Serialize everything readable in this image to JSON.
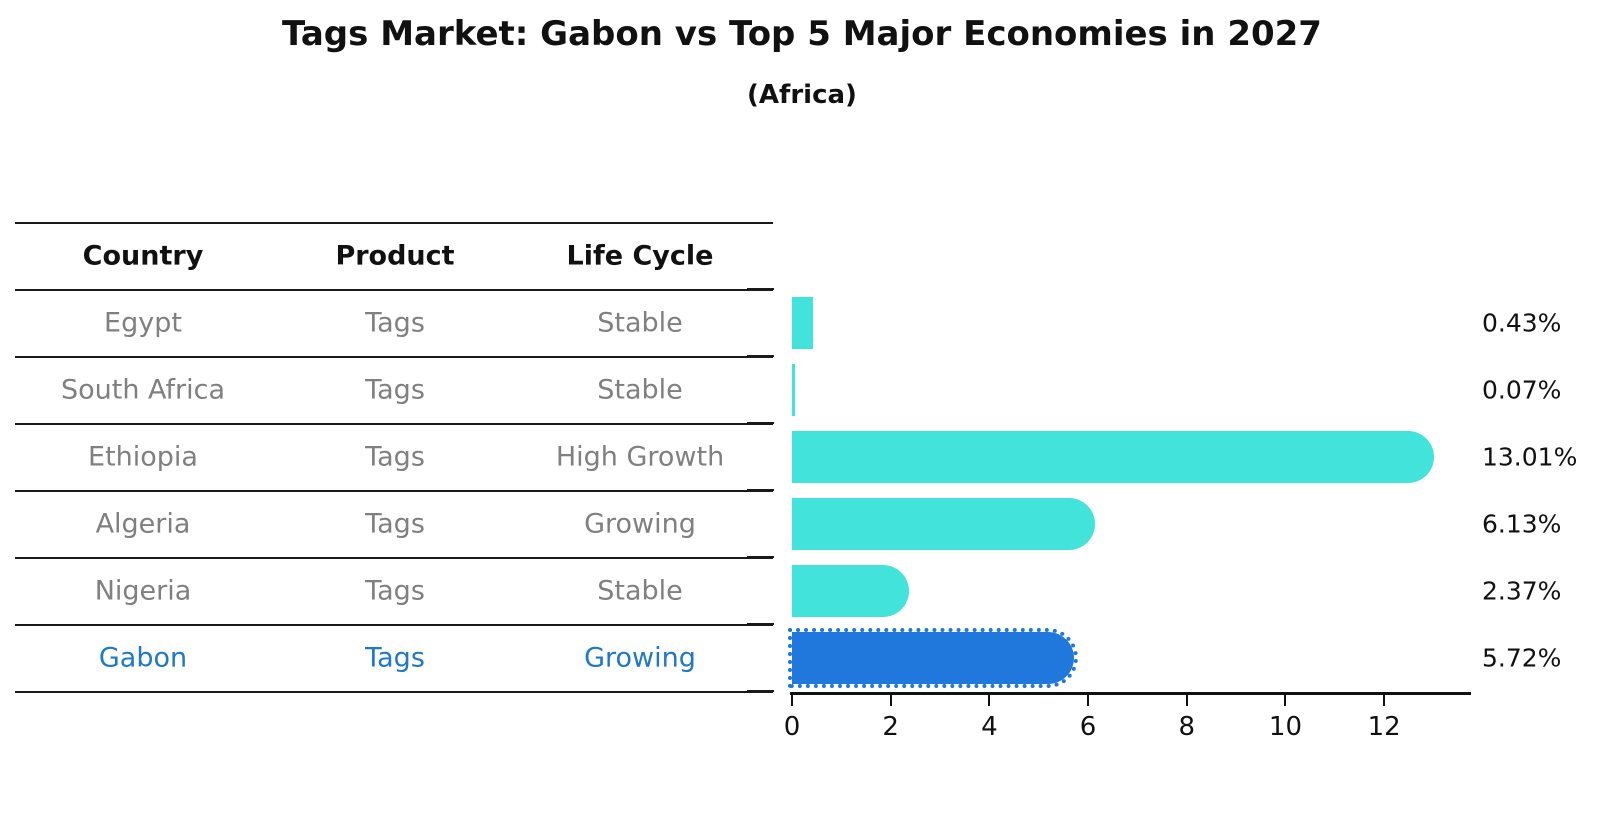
{
  "title": "Tags Market: Gabon vs Top 5 Major Economies in 2027",
  "subtitle": "(Africa)",
  "table": {
    "headers": [
      "Country",
      "Product",
      "Life Cycle"
    ],
    "rows": [
      {
        "country": "Egypt",
        "product": "Tags",
        "life_cycle": "Stable",
        "highlight": false
      },
      {
        "country": "South Africa",
        "product": "Tags",
        "life_cycle": "Stable",
        "highlight": false
      },
      {
        "country": "Ethiopia",
        "product": "Tags",
        "life_cycle": "High Growth",
        "highlight": false
      },
      {
        "country": "Algeria",
        "product": "Tags",
        "life_cycle": "Growing",
        "highlight": false
      },
      {
        "country": "Nigeria",
        "product": "Tags",
        "life_cycle": "Stable",
        "highlight": false
      },
      {
        "country": "Gabon",
        "product": "Tags",
        "life_cycle": "Growing",
        "highlight": true
      }
    ]
  },
  "chart_data": {
    "type": "bar",
    "orientation": "horizontal",
    "title": "Tags Market: Gabon vs Top 5 Major Economies in 2027",
    "subtitle": "(Africa)",
    "categories": [
      "Egypt",
      "South Africa",
      "Ethiopia",
      "Algeria",
      "Nigeria",
      "Gabon"
    ],
    "values": [
      0.43,
      0.07,
      13.01,
      6.13,
      2.37,
      5.72
    ],
    "value_labels": [
      "0.43%",
      "0.07%",
      "13.01%",
      "6.13%",
      "2.37%",
      "5.72%"
    ],
    "xlabel": "",
    "ylabel": "",
    "xlim": [
      0,
      13.8
    ],
    "xticks": [
      0,
      2,
      4,
      6,
      8,
      10,
      12
    ],
    "grid": false,
    "legend": "none",
    "highlight_index": 5
  },
  "colors": {
    "bar": "#42e3da",
    "highlight_bar": "#2077dc",
    "highlight_text": "#1f78c8",
    "text_gray": "#808080",
    "text_dark": "#111111",
    "line": "#1a1a1a"
  }
}
